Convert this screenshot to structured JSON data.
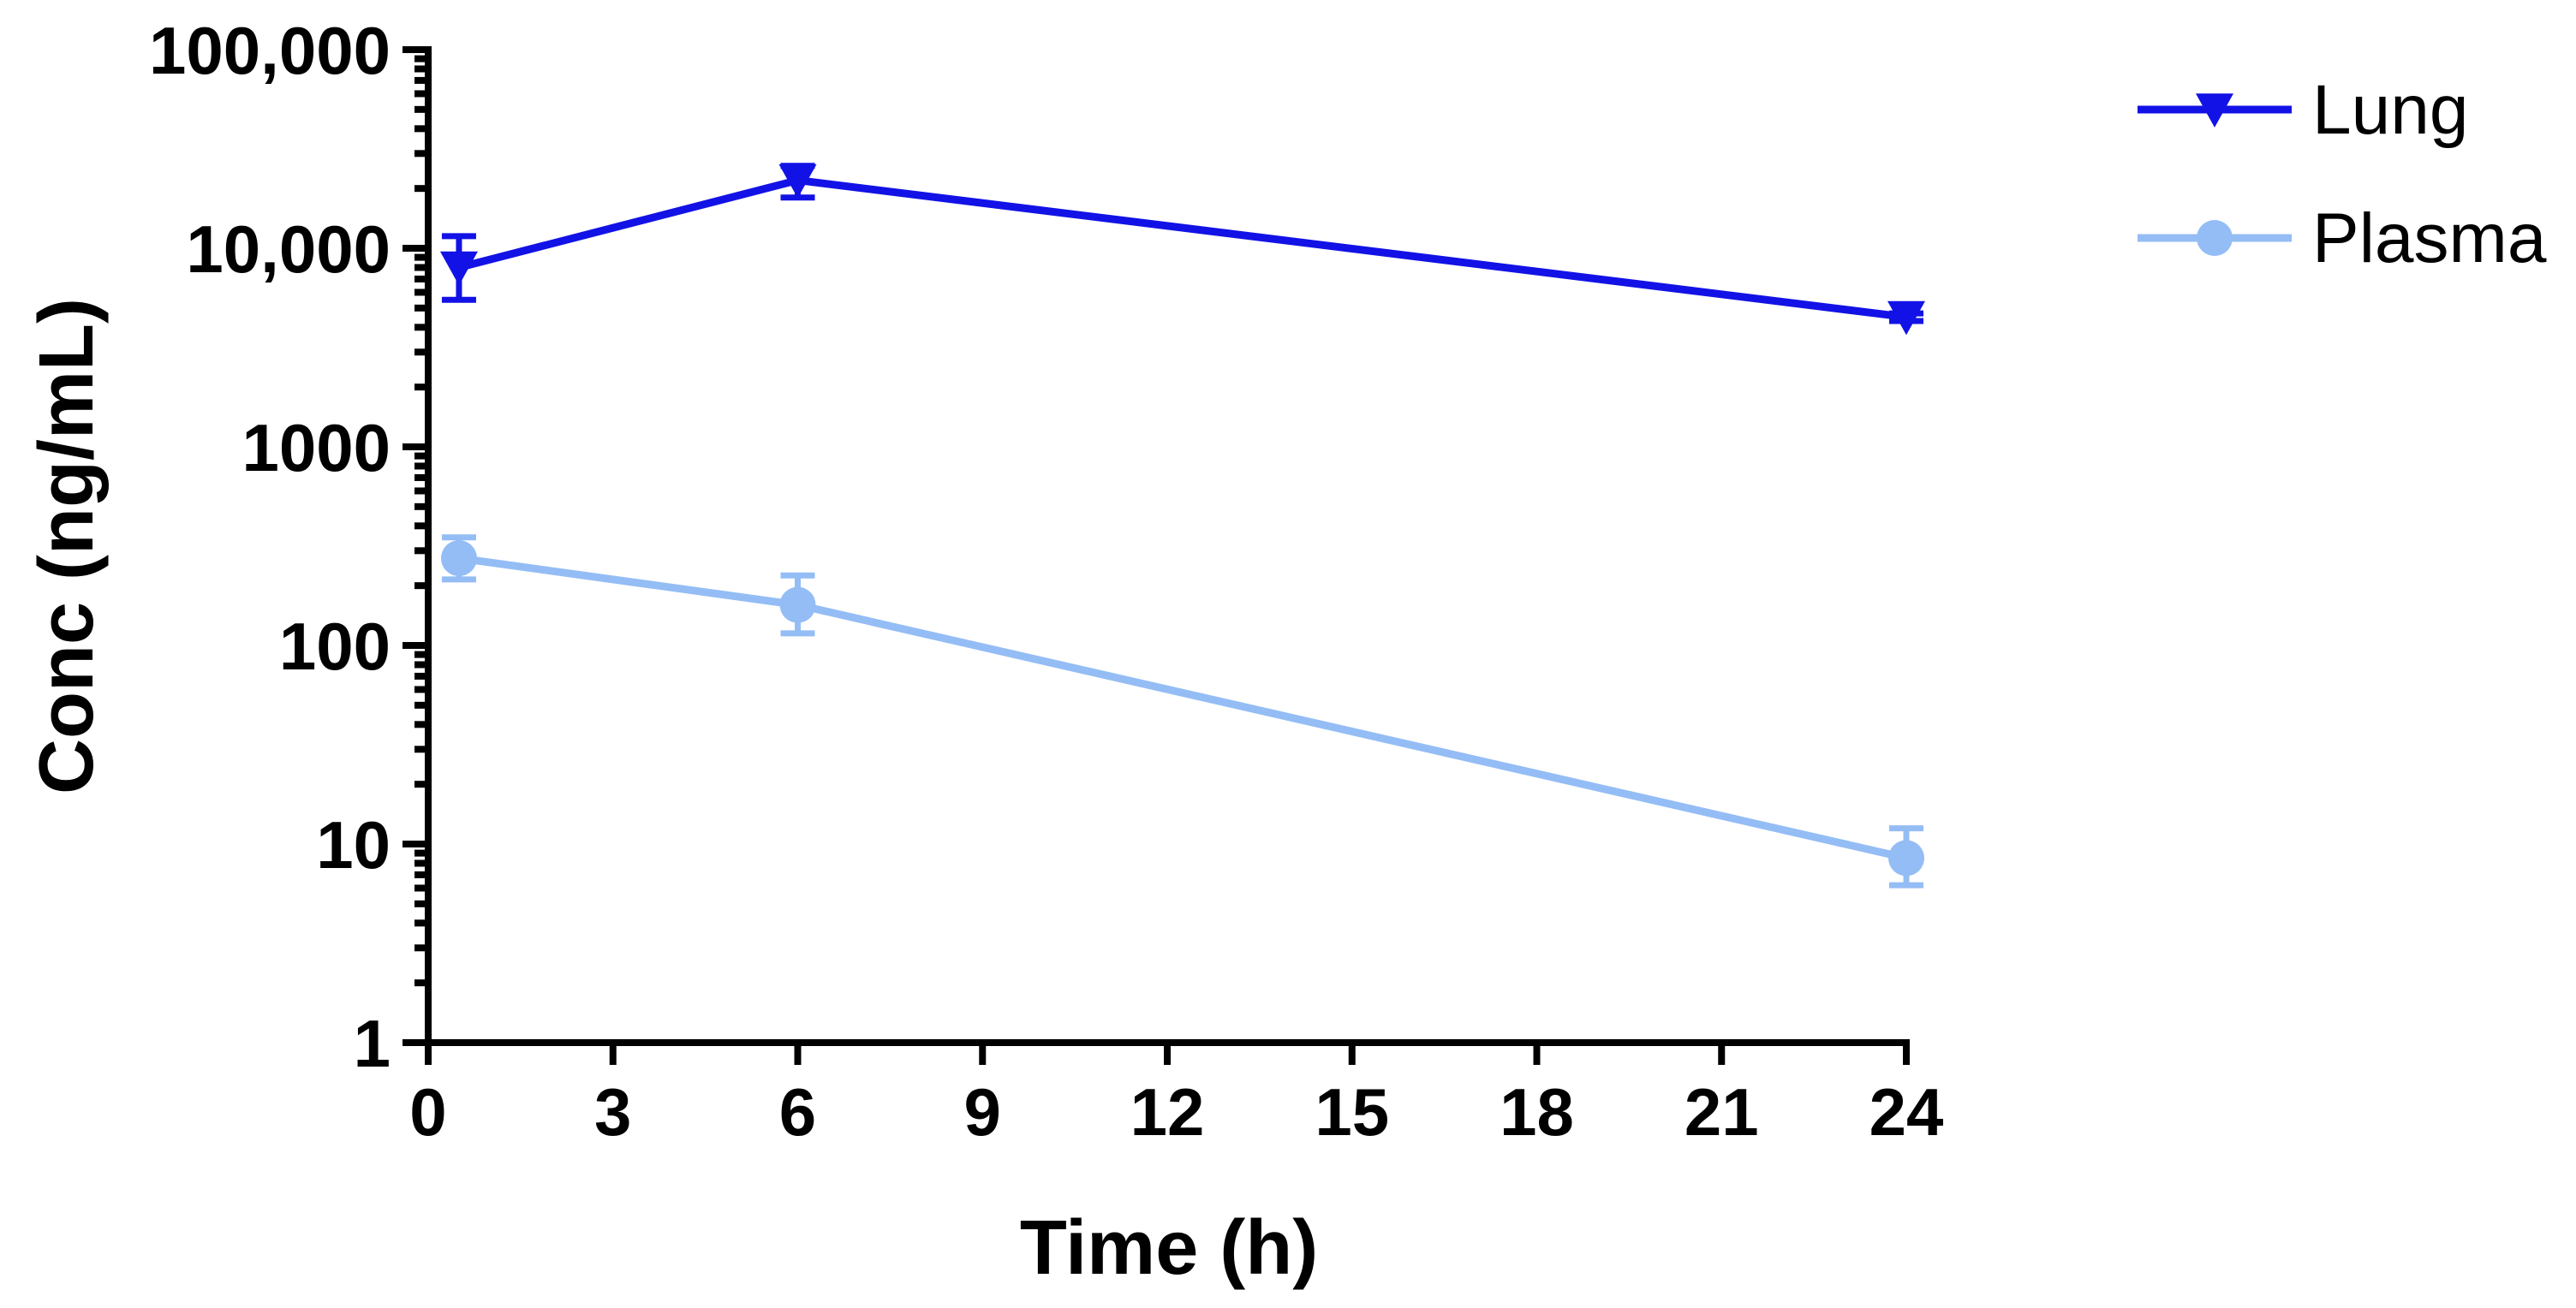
{
  "chart_data": {
    "type": "line",
    "title": "",
    "xlabel": "Time (h)",
    "ylabel": "Conc (ng/mL)",
    "xscale": "linear",
    "yscale": "log",
    "xlim": [
      0,
      24
    ],
    "ylim": [
      1,
      100000
    ],
    "xticks": [
      0,
      3,
      6,
      9,
      12,
      15,
      18,
      21,
      24
    ],
    "xtick_labels": [
      "0",
      "3",
      "6",
      "9",
      "12",
      "15",
      "18",
      "21",
      "24"
    ],
    "yticks": [
      1,
      10,
      100,
      1000,
      10000,
      100000
    ],
    "ytick_labels": [
      "1",
      "10",
      "100",
      "1000",
      "10,000",
      "100,000"
    ],
    "grid": false,
    "legend_position": "top-right outside",
    "series": [
      {
        "name": "Lung",
        "color": "#1212e6",
        "marker": "triangle-down",
        "points": [
          {
            "x": 0.5,
            "y": 8000,
            "err_low": 5500,
            "err_high": 11500
          },
          {
            "x": 6,
            "y": 22000,
            "err_low": 18000,
            "err_high": 26000
          },
          {
            "x": 24,
            "y": 4500,
            "err_low": 4300,
            "err_high": 4700
          }
        ]
      },
      {
        "name": "Plasma",
        "color": "#94bdf5",
        "marker": "circle",
        "points": [
          {
            "x": 0.5,
            "y": 275,
            "err_low": 215,
            "err_high": 350
          },
          {
            "x": 6,
            "y": 160,
            "err_low": 115,
            "err_high": 225
          },
          {
            "x": 24,
            "y": 8.5,
            "err_low": 6.2,
            "err_high": 12
          }
        ]
      }
    ]
  }
}
